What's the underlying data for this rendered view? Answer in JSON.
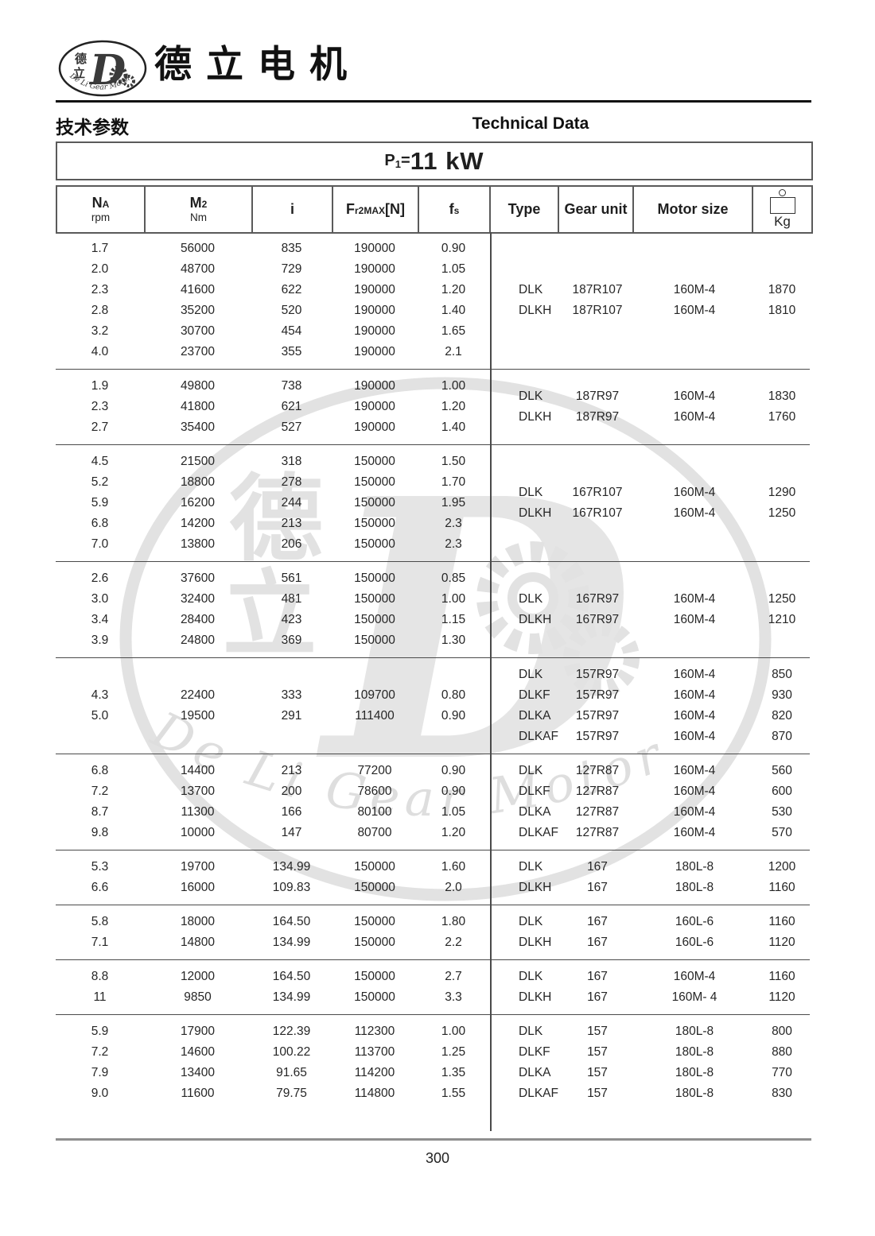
{
  "brand": {
    "name": "德立电机",
    "logo_cn_top": "德",
    "logo_cn_bottom": "立",
    "logo_d": "D",
    "logo_arc_text": "De Li Gear Motor"
  },
  "header": {
    "section_cn": "技术参数",
    "section_en": "Technical Data",
    "power": {
      "p": "P",
      "sub": "1",
      "eq": "=",
      "value": "11 kW"
    }
  },
  "table": {
    "header": {
      "na_main": "N",
      "na_sub": "A",
      "na_unit": "rpm",
      "m2_main": "M",
      "m2_sub": "2",
      "m2_unit": "Nm",
      "i": "i",
      "fr_main": "F",
      "fr_sub": "r2MAX",
      "fr_bracket": "[N]",
      "fs_main": "f",
      "fs_sub": "s",
      "type": "Type",
      "gear_unit": "Gear unit",
      "motor_size": "Motor size",
      "kg": "Kg"
    },
    "left_columns": [
      "na",
      "m2",
      "i",
      "fr2max",
      "fs"
    ],
    "right_columns": [
      "type",
      "gear-unit",
      "motor-size",
      "kg"
    ],
    "groups": [
      {
        "left": [
          [
            "1.7",
            "56000",
            "835",
            "190000",
            "0.90"
          ],
          [
            "2.0",
            "48700",
            "729",
            "190000",
            "1.05"
          ],
          [
            "2.3",
            "41600",
            "622",
            "190000",
            "1.20"
          ],
          [
            "2.8",
            "35200",
            "520",
            "190000",
            "1.40"
          ],
          [
            "3.2",
            "30700",
            "454",
            "190000",
            "1.65"
          ],
          [
            "4.0",
            "23700",
            "355",
            "190000",
            "2.1"
          ]
        ],
        "right": [
          [
            "DLK",
            "187R107",
            "160M-4",
            "1870"
          ],
          [
            "DLKH",
            "187R107",
            "160M-4",
            "1810"
          ]
        ]
      },
      {
        "left": [
          [
            "1.9",
            "49800",
            "738",
            "190000",
            "1.00"
          ],
          [
            "2.3",
            "41800",
            "621",
            "190000",
            "1.20"
          ],
          [
            "2.7",
            "35400",
            "527",
            "190000",
            "1.40"
          ]
        ],
        "right": [
          [
            "DLK",
            "187R97",
            "160M-4",
            "1830"
          ],
          [
            "DLKH",
            "187R97",
            "160M-4",
            "1760"
          ]
        ]
      },
      {
        "left": [
          [
            "4.5",
            "21500",
            "318",
            "150000",
            "1.50"
          ],
          [
            "5.2",
            "18800",
            "278",
            "150000",
            "1.70"
          ],
          [
            "5.9",
            "16200",
            "244",
            "150000",
            "1.95"
          ],
          [
            "6.8",
            "14200",
            "213",
            "150000",
            "2.3"
          ],
          [
            "7.0",
            "13800",
            "206",
            "150000",
            "2.3"
          ]
        ],
        "right": [
          [
            "DLK",
            "167R107",
            "160M-4",
            "1290"
          ],
          [
            "DLKH",
            "167R107",
            "160M-4",
            "1250"
          ]
        ]
      },
      {
        "left": [
          [
            "2.6",
            "37600",
            "561",
            "150000",
            "0.85"
          ],
          [
            "3.0",
            "32400",
            "481",
            "150000",
            "1.00"
          ],
          [
            "3.4",
            "28400",
            "423",
            "150000",
            "1.15"
          ],
          [
            "3.9",
            "24800",
            "369",
            "150000",
            "1.30"
          ]
        ],
        "right": [
          [
            "DLK",
            "167R97",
            "160M-4",
            "1250"
          ],
          [
            "DLKH",
            "167R97",
            "160M-4",
            "1210"
          ]
        ]
      },
      {
        "left": [
          [
            "4.3",
            "22400",
            "333",
            "109700",
            "0.80"
          ],
          [
            "5.0",
            "19500",
            "291",
            "111400",
            "0.90"
          ]
        ],
        "right": [
          [
            "DLK",
            "157R97",
            "160M-4",
            "850"
          ],
          [
            "DLKF",
            "157R97",
            "160M-4",
            "930"
          ],
          [
            "DLKA",
            "157R97",
            "160M-4",
            "820"
          ],
          [
            "DLKAF",
            "157R97",
            "160M-4",
            "870"
          ]
        ]
      },
      {
        "left": [
          [
            "6.8",
            "14400",
            "213",
            "77200",
            "0.90"
          ],
          [
            "7.2",
            "13700",
            "200",
            "78600",
            "0.90"
          ],
          [
            "8.7",
            "11300",
            "166",
            "80100",
            "1.05"
          ],
          [
            "9.8",
            "10000",
            "147",
            "80700",
            "1.20"
          ]
        ],
        "right": [
          [
            "DLK",
            "127R87",
            "160M-4",
            "560"
          ],
          [
            "DLKF",
            "127R87",
            "160M-4",
            "600"
          ],
          [
            "DLKA",
            "127R87",
            "160M-4",
            "530"
          ],
          [
            "DLKAF",
            "127R87",
            "160M-4",
            "570"
          ]
        ]
      },
      {
        "left": [
          [
            "5.3",
            "19700",
            "134.99",
            "150000",
            "1.60"
          ],
          [
            "6.6",
            "16000",
            "109.83",
            "150000",
            "2.0"
          ]
        ],
        "right": [
          [
            "DLK",
            "167",
            "180L-8",
            "1200"
          ],
          [
            "DLKH",
            "167",
            "180L-8",
            "1160"
          ]
        ]
      },
      {
        "left": [
          [
            "5.8",
            "18000",
            "164.50",
            "150000",
            "1.80"
          ],
          [
            "7.1",
            "14800",
            "134.99",
            "150000",
            "2.2"
          ]
        ],
        "right": [
          [
            "DLK",
            "167",
            "160L-6",
            "1160"
          ],
          [
            "DLKH",
            "167",
            "160L-6",
            "1120"
          ]
        ]
      },
      {
        "left": [
          [
            "8.8",
            "12000",
            "164.50",
            "150000",
            "2.7"
          ],
          [
            "11",
            "9850",
            "134.99",
            "150000",
            "3.3"
          ]
        ],
        "right": [
          [
            "DLK",
            "167",
            "160M-4",
            "1160"
          ],
          [
            "DLKH",
            "167",
            "160M- 4",
            "1120"
          ]
        ]
      },
      {
        "left": [
          [
            "5.9",
            "17900",
            "122.39",
            "112300",
            "1.00"
          ],
          [
            "7.2",
            "14600",
            "100.22",
            "113700",
            "1.25"
          ],
          [
            "7.9",
            "13400",
            "91.65",
            "114200",
            "1.35"
          ],
          [
            "9.0",
            "11600",
            "79.75",
            "114800",
            "1.55"
          ]
        ],
        "right": [
          [
            "DLK",
            "157",
            "180L-8",
            "800"
          ],
          [
            "DLKF",
            "157",
            "180L-8",
            "880"
          ],
          [
            "DLKA",
            "157",
            "180L-8",
            "770"
          ],
          [
            "DLKAF",
            "157",
            "180L-8",
            "830"
          ]
        ]
      }
    ]
  },
  "footer": {
    "page_number": "300"
  }
}
